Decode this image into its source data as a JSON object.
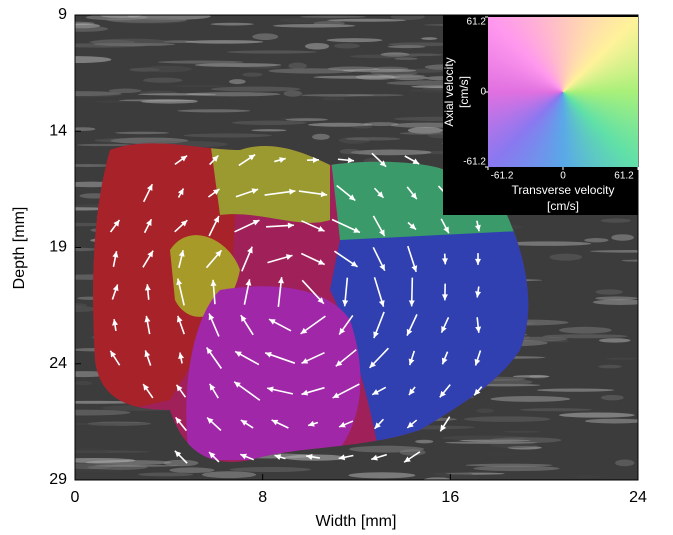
{
  "chart_data": {
    "type": "image",
    "xlabel": "Width [mm]",
    "ylabel": "Depth [mm]",
    "xlim": [
      0,
      24
    ],
    "ylim": [
      9,
      29
    ],
    "y_inverted": true,
    "xticks": [
      0,
      8,
      16,
      24
    ],
    "yticks": [
      9,
      14,
      19,
      24,
      29
    ],
    "inset": {
      "xlabel": [
        "Transverse velocity",
        "[cm/s]"
      ],
      "ylabel": [
        "Axial velocity",
        "[cm/s]"
      ],
      "xlim": [
        -61.2,
        61.2
      ],
      "ylim": [
        -61.2,
        61.2
      ],
      "xticks": [
        -61.2,
        0,
        61.2
      ],
      "yticks": [
        -61.2,
        0,
        61.2
      ]
    }
  }
}
